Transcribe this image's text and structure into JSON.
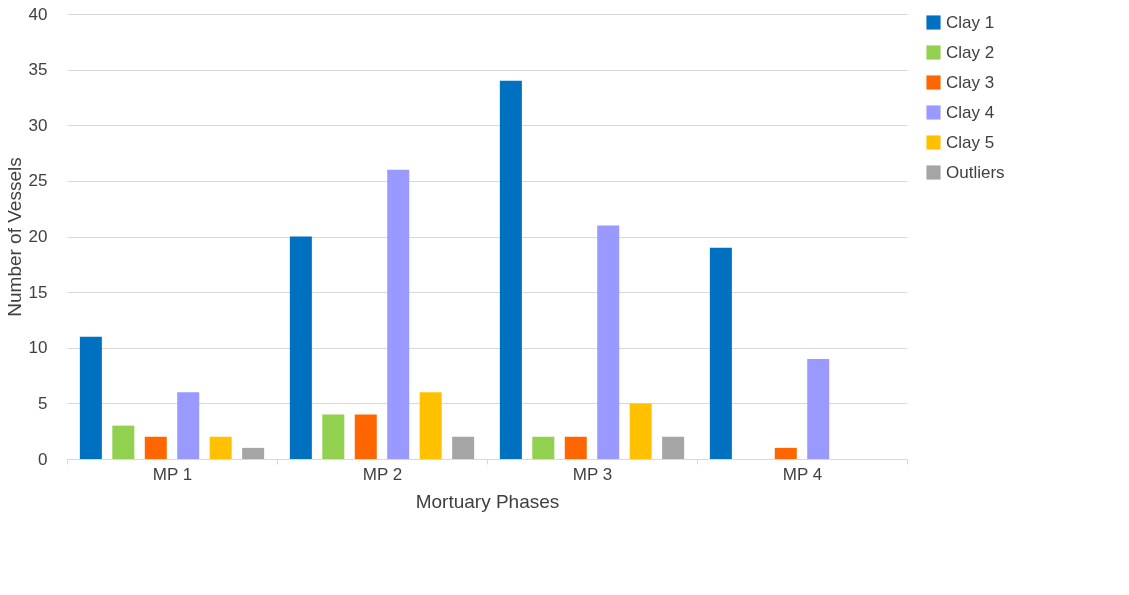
{
  "chart_data": {
    "type": "bar",
    "xlabel": "Mortuary Phases",
    "ylabel": "Number of Vessels",
    "categories": [
      "MP 1",
      "MP 2",
      "MP 3",
      "MP 4"
    ],
    "series": [
      {
        "name": "Clay 1",
        "color": "#0070c0",
        "values": [
          11,
          20,
          34,
          19
        ]
      },
      {
        "name": "Clay 2",
        "color": "#92d050",
        "values": [
          3,
          4,
          2,
          0
        ]
      },
      {
        "name": "Clay 3",
        "color": "#ff6600",
        "values": [
          2,
          4,
          2,
          1
        ]
      },
      {
        "name": "Clay 4",
        "color": "#9999ff",
        "values": [
          6,
          26,
          21,
          9
        ]
      },
      {
        "name": "Clay 5",
        "color": "#ffc000",
        "values": [
          2,
          6,
          5,
          0
        ]
      },
      {
        "name": "Outliers",
        "color": "#a5a5a5",
        "values": [
          1,
          2,
          2,
          0
        ]
      }
    ],
    "ylim": [
      0,
      40
    ],
    "yticks": [
      0,
      5,
      10,
      15,
      20,
      25,
      30,
      35,
      40
    ],
    "grid": "y",
    "legend": "right"
  }
}
